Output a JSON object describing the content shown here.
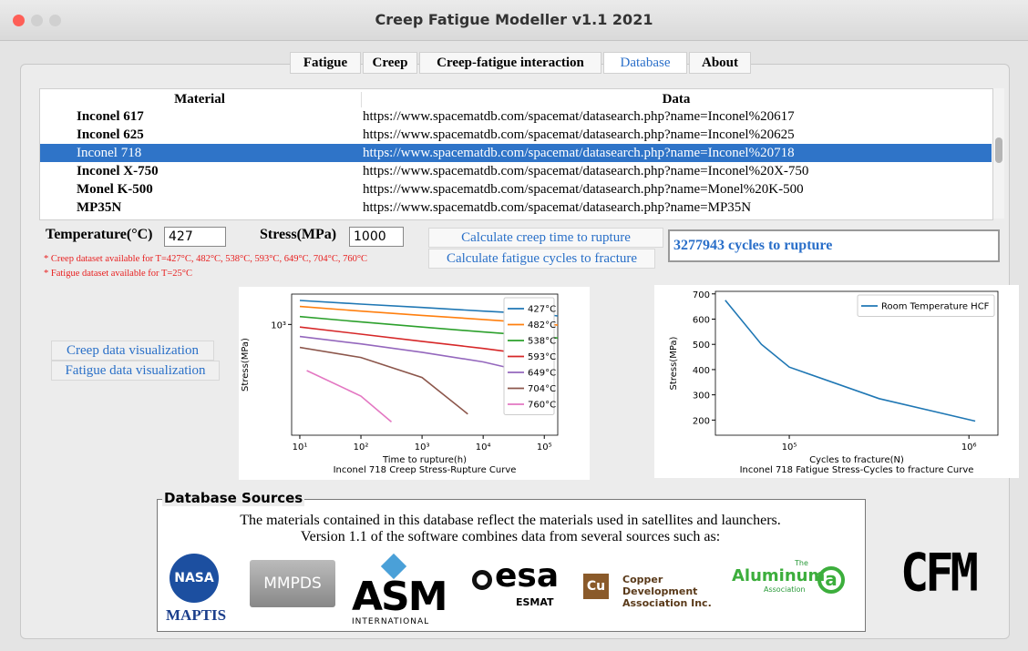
{
  "window": {
    "title": "Creep Fatigue Modeller v1.1 2021"
  },
  "tabs": {
    "items": [
      "Fatigue",
      "Creep",
      "Creep-fatigue interaction",
      "Database",
      "About"
    ],
    "selected": 3
  },
  "table": {
    "headers": [
      "Material",
      "Data"
    ],
    "selected_row": 2,
    "rows": [
      [
        "Inconel 617",
        "https://www.spacematdb.com/spacemat/datasearch.php?name=Inconel%20617"
      ],
      [
        "Inconel 625",
        "https://www.spacematdb.com/spacemat/datasearch.php?name=Inconel%20625"
      ],
      [
        "Inconel 718",
        "https://www.spacematdb.com/spacemat/datasearch.php?name=Inconel%20718"
      ],
      [
        "Inconel X-750",
        "https://www.spacematdb.com/spacemat/datasearch.php?name=Inconel%20X-750"
      ],
      [
        "Monel K-500",
        "https://www.spacematdb.com/spacemat/datasearch.php?name=Monel%20K-500"
      ],
      [
        "MP35N",
        "https://www.spacematdb.com/spacemat/datasearch.php?name=MP35N"
      ]
    ]
  },
  "inputs": {
    "temperature_label": "Temperature(°C)",
    "temperature_value": "427",
    "stress_label": "Stress(MPa)",
    "stress_value": "1000"
  },
  "buttons": {
    "creep": "Calculate creep time to rupture",
    "fatigue": "Calculate fatigue cycles to fracture",
    "creep_vis": "Creep data visualization",
    "fatigue_vis": "Fatigue data visualization"
  },
  "result": "3277943 cycles to rupture",
  "notes": [
    "* Creep dataset available for T=427°C, 482°C, 538°C, 593°C, 649°C, 704°C, 760°C",
    "* Fatigue dataset available for T=25°C"
  ],
  "chart_data": [
    {
      "type": "line",
      "title": "Inconel 718 Creep Stress-Rupture Curve",
      "x_label": "Time to rupture(h)",
      "y_label": "Stress(MPa)",
      "xscale": "log",
      "yscale": "log",
      "xlim": [
        7.35,
        166000
      ],
      "ylim": [
        180,
        1600
      ],
      "xticks": [
        {
          "value": 10,
          "label": "10¹"
        },
        {
          "value": 100,
          "label": "10²"
        },
        {
          "value": 1000,
          "label": "10³"
        },
        {
          "value": 10000,
          "label": "10⁴"
        },
        {
          "value": 100000,
          "label": "10⁵"
        }
      ],
      "yticks": [
        {
          "value": 1000,
          "label": "10³"
        }
      ],
      "legend": "upper right",
      "series": [
        {
          "name": "427°C",
          "color": "#1f77b4",
          "x": [
            10,
            100,
            1000,
            10000,
            100000,
            166000
          ],
          "values": [
            1450,
            1370,
            1300,
            1230,
            1170,
            1140
          ]
        },
        {
          "name": "482°C",
          "color": "#ff7f0e",
          "x": [
            10,
            100,
            1000,
            10000,
            100000,
            166000
          ],
          "values": [
            1320,
            1230,
            1150,
            1080,
            1010,
            990
          ]
        },
        {
          "name": "538°C",
          "color": "#2ca02c",
          "x": [
            10,
            100,
            1000,
            10000,
            100000,
            166000
          ],
          "values": [
            1130,
            1040,
            960,
            890,
            830,
            810
          ]
        },
        {
          "name": "593°C",
          "color": "#d62728",
          "x": [
            10,
            100,
            1000,
            10000,
            100000
          ],
          "values": [
            960,
            860,
            770,
            690,
            610
          ]
        },
        {
          "name": "649°C",
          "color": "#9467bd",
          "x": [
            10,
            100,
            1000,
            10000,
            50000
          ],
          "values": [
            830,
            740,
            650,
            560,
            480
          ]
        },
        {
          "name": "704°C",
          "color": "#8c564b",
          "x": [
            10,
            100,
            1000,
            5600
          ],
          "values": [
            700,
            600,
            440,
            250
          ]
        },
        {
          "name": "760°C",
          "color": "#e377c2",
          "x": [
            13,
            100,
            316
          ],
          "values": [
            490,
            330,
            221
          ]
        }
      ]
    },
    {
      "type": "line",
      "title": "Inconel 718 Fatigue Stress-Cycles to fracture Curve",
      "x_label": "Cycles to fracture(N)",
      "y_label": "Stress(MPa)",
      "xscale": "log",
      "yscale": "linear",
      "xlim": [
        38800,
        1450000
      ],
      "ylim": [
        140,
        710
      ],
      "xticks": [
        {
          "value": 100000,
          "label": "10⁵"
        },
        {
          "value": 1000000,
          "label": "10⁶"
        }
      ],
      "yticks": [
        200,
        300,
        400,
        500,
        600,
        700
      ],
      "legend": "upper right",
      "series": [
        {
          "name": "Room Temperature HCF",
          "color": "#1f77b4",
          "x": [
            44000,
            70000,
            100000,
            316000,
            1084000
          ],
          "values": [
            675,
            500,
            410,
            285,
            196
          ]
        }
      ]
    }
  ],
  "sources": {
    "title": "Database Sources",
    "lines": [
      "The materials contained in this database reflect the materials used in satellites and launchers.",
      "Version 1.1 of the software combines data from several sources such as:"
    ],
    "logos": {
      "nasa": "NASA",
      "maptis": "MAPTIS",
      "mmpds": "MMPDS",
      "asm": "ASM",
      "asm_sub": "INTERNATIONAL",
      "esa": "esa",
      "esmat": "ESMAT",
      "cu": "Cu",
      "cda": "Copper Development Association Inc.",
      "al_the": "The",
      "al": "Aluminum",
      "al_assoc": "Association",
      "al_mark": "a",
      "cfm": "CFM"
    }
  }
}
